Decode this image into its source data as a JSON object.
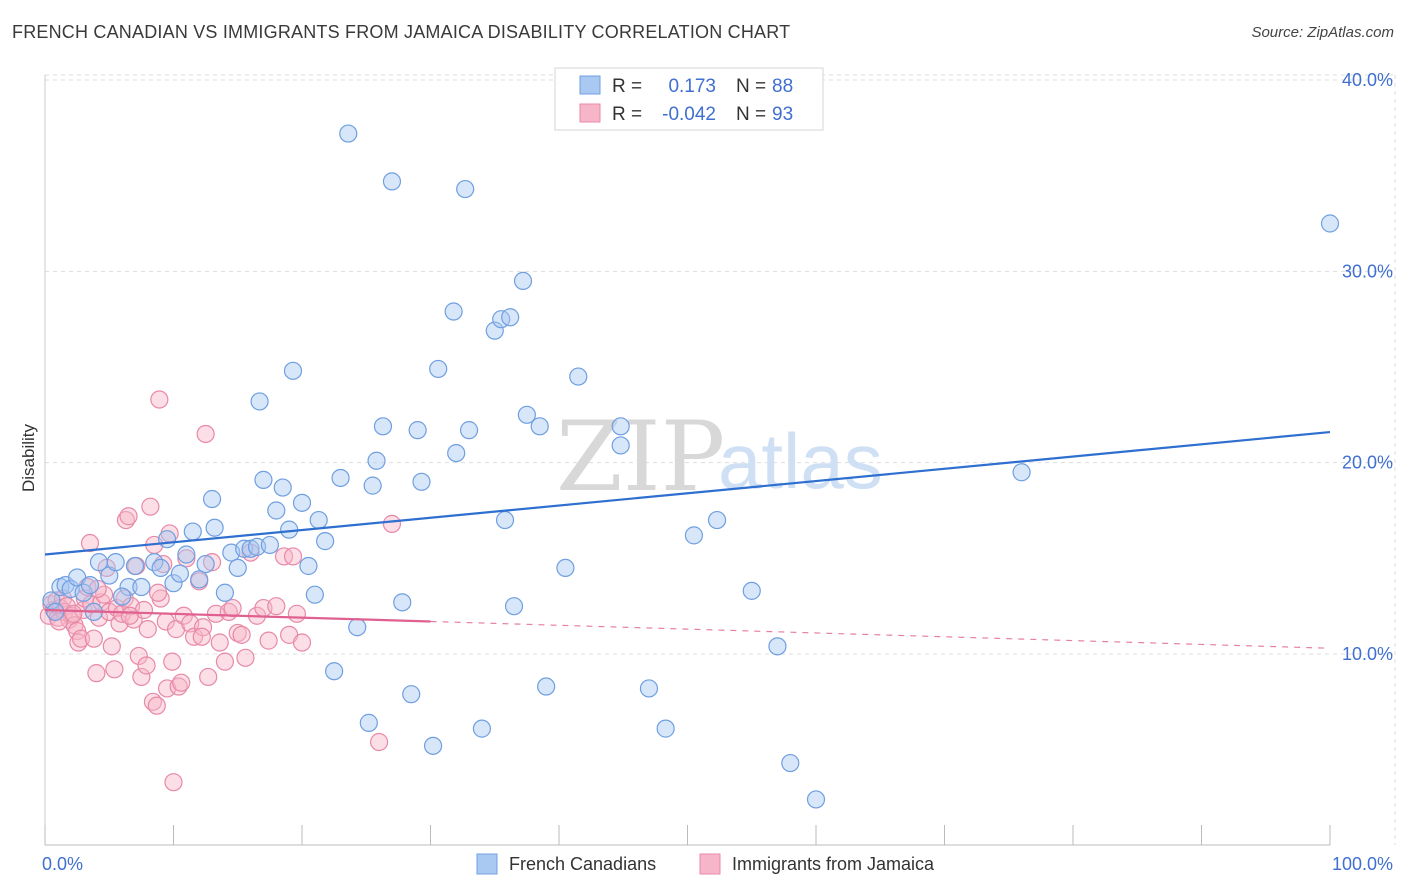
{
  "title": "FRENCH CANADIAN VS IMMIGRANTS FROM JAMAICA DISABILITY CORRELATION CHART",
  "source": "Source: ZipAtlas.com",
  "watermark": {
    "zip": "ZIP",
    "atlas": "atlas"
  },
  "colors": {
    "blue_fill": "#a9c8f2",
    "blue_stroke": "#6f9fe0",
    "blue_line": "#2e6fd0",
    "pink_fill": "#f6b5c8",
    "pink_stroke": "#e889a8",
    "pink_line": "#e0608f",
    "tick_text": "#3f6fd0",
    "grid": "#dddddd"
  },
  "legend": {
    "row1": {
      "r_label": "R =",
      "r_value": "0.173",
      "n_label": "N =",
      "n_value": "88"
    },
    "row2": {
      "r_label": "R =",
      "r_value": "-0.042",
      "n_label": "N =",
      "n_value": "93"
    }
  },
  "bottom_legend": {
    "series1": "French Canadians",
    "series2": "Immigrants from Jamaica"
  },
  "chart_data": {
    "type": "scatter",
    "title": "FRENCH CANADIAN VS IMMIGRANTS FROM JAMAICA DISABILITY CORRELATION CHART",
    "xlabel": "",
    "ylabel": "Disability",
    "xlim": [
      0,
      100
    ],
    "ylim": [
      0,
      41
    ],
    "x_tick_labels": [
      "0.0%",
      "100.0%"
    ],
    "y_ticks": [
      10,
      20,
      30,
      40
    ],
    "y_tick_labels": [
      "10.0%",
      "20.0%",
      "30.0%",
      "40.0%"
    ],
    "series": [
      {
        "name": "French Canadians",
        "R": 0.173,
        "N": 88,
        "trend": {
          "x": [
            0,
            100
          ],
          "y": [
            15.2,
            21.6
          ],
          "dashed_from": null
        },
        "points": [
          [
            0.5,
            12.8
          ],
          [
            0.8,
            12.2
          ],
          [
            1.2,
            13.5
          ],
          [
            1.6,
            13.6
          ],
          [
            2.0,
            13.4
          ],
          [
            2.5,
            14.0
          ],
          [
            3.0,
            13.2
          ],
          [
            3.5,
            13.6
          ],
          [
            4.2,
            14.8
          ],
          [
            5.0,
            14.1
          ],
          [
            5.5,
            14.8
          ],
          [
            6.5,
            13.5
          ],
          [
            7.0,
            14.6
          ],
          [
            7.5,
            13.5
          ],
          [
            8.5,
            14.8
          ],
          [
            9.5,
            16.0
          ],
          [
            10.0,
            13.7
          ],
          [
            10.5,
            14.2
          ],
          [
            11.0,
            15.2
          ],
          [
            11.5,
            16.4
          ],
          [
            12.0,
            13.9
          ],
          [
            12.5,
            14.7
          ],
          [
            13.0,
            18.1
          ],
          [
            13.2,
            16.6
          ],
          [
            14.0,
            13.2
          ],
          [
            14.5,
            15.3
          ],
          [
            15.0,
            14.5
          ],
          [
            15.5,
            15.5
          ],
          [
            16.0,
            15.5
          ],
          [
            16.5,
            15.6
          ],
          [
            16.7,
            23.2
          ],
          [
            17.0,
            19.1
          ],
          [
            17.5,
            15.7
          ],
          [
            18.0,
            17.5
          ],
          [
            18.5,
            18.7
          ],
          [
            19.0,
            16.5
          ],
          [
            19.3,
            24.8
          ],
          [
            20.0,
            17.9
          ],
          [
            20.5,
            14.6
          ],
          [
            21.0,
            13.1
          ],
          [
            21.3,
            17.0
          ],
          [
            21.8,
            15.9
          ],
          [
            22.5,
            9.1
          ],
          [
            23.0,
            19.2
          ],
          [
            23.6,
            37.2
          ],
          [
            24.3,
            11.4
          ],
          [
            25.2,
            6.4
          ],
          [
            25.5,
            18.8
          ],
          [
            25.8,
            20.1
          ],
          [
            26.3,
            21.9
          ],
          [
            27.0,
            34.7
          ],
          [
            27.8,
            12.7
          ],
          [
            28.5,
            7.9
          ],
          [
            29.0,
            21.7
          ],
          [
            29.3,
            19.0
          ],
          [
            30.2,
            5.2
          ],
          [
            30.6,
            24.9
          ],
          [
            31.8,
            27.9
          ],
          [
            32.0,
            20.5
          ],
          [
            32.7,
            34.3
          ],
          [
            33.0,
            21.7
          ],
          [
            34.0,
            6.1
          ],
          [
            35.0,
            26.9
          ],
          [
            35.5,
            27.5
          ],
          [
            35.8,
            17.0
          ],
          [
            36.2,
            27.6
          ],
          [
            36.5,
            12.5
          ],
          [
            37.2,
            29.5
          ],
          [
            37.5,
            22.5
          ],
          [
            38.5,
            21.9
          ],
          [
            39.0,
            8.3
          ],
          [
            40.5,
            14.5
          ],
          [
            41.5,
            24.5
          ],
          [
            44.8,
            21.9
          ],
          [
            44.8,
            20.9
          ],
          [
            47.0,
            8.2
          ],
          [
            48.3,
            6.1
          ],
          [
            50.5,
            16.2
          ],
          [
            52.3,
            17.0
          ],
          [
            55.0,
            13.3
          ],
          [
            57.0,
            10.4
          ],
          [
            58.0,
            4.3
          ],
          [
            60.0,
            2.4
          ],
          [
            76.0,
            19.5
          ],
          [
            100.0,
            32.5
          ],
          [
            3.8,
            12.2
          ],
          [
            6.0,
            13.0
          ],
          [
            9.0,
            14.5
          ]
        ]
      },
      {
        "name": "Immigrants from Jamaica",
        "R": -0.042,
        "N": 93,
        "trend": {
          "x": [
            0,
            100
          ],
          "y": [
            12.3,
            10.3
          ],
          "dashed_from": 30
        },
        "points": [
          [
            0.3,
            12.0
          ],
          [
            0.5,
            12.6
          ],
          [
            0.7,
            12.3
          ],
          [
            0.9,
            12.8
          ],
          [
            1.0,
            11.9
          ],
          [
            1.2,
            12.4
          ],
          [
            1.4,
            12.9
          ],
          [
            1.5,
            12.2
          ],
          [
            1.7,
            12.5
          ],
          [
            1.9,
            11.8
          ],
          [
            2.1,
            12.0
          ],
          [
            2.3,
            11.5
          ],
          [
            2.5,
            11.2
          ],
          [
            2.6,
            10.6
          ],
          [
            2.8,
            10.8
          ],
          [
            3.0,
            12.3
          ],
          [
            3.1,
            12.9
          ],
          [
            3.3,
            13.5
          ],
          [
            3.5,
            15.8
          ],
          [
            3.6,
            12.6
          ],
          [
            3.8,
            10.8
          ],
          [
            4.0,
            9.0
          ],
          [
            4.2,
            11.9
          ],
          [
            4.4,
            12.7
          ],
          [
            4.6,
            13.1
          ],
          [
            4.8,
            14.5
          ],
          [
            5.0,
            12.2
          ],
          [
            5.2,
            10.4
          ],
          [
            5.4,
            9.2
          ],
          [
            5.6,
            12.4
          ],
          [
            5.8,
            11.6
          ],
          [
            6.0,
            12.1
          ],
          [
            6.2,
            12.9
          ],
          [
            6.3,
            17.0
          ],
          [
            6.5,
            17.2
          ],
          [
            6.7,
            12.5
          ],
          [
            6.9,
            11.8
          ],
          [
            7.1,
            14.6
          ],
          [
            7.3,
            9.9
          ],
          [
            7.5,
            8.8
          ],
          [
            7.7,
            12.3
          ],
          [
            7.9,
            9.4
          ],
          [
            8.0,
            11.3
          ],
          [
            8.2,
            17.7
          ],
          [
            8.4,
            7.5
          ],
          [
            8.5,
            15.7
          ],
          [
            8.7,
            7.3
          ],
          [
            8.9,
            23.3
          ],
          [
            9.0,
            12.9
          ],
          [
            9.2,
            14.7
          ],
          [
            9.4,
            11.7
          ],
          [
            9.5,
            8.2
          ],
          [
            9.7,
            16.3
          ],
          [
            9.9,
            9.6
          ],
          [
            10.0,
            3.3
          ],
          [
            10.2,
            11.3
          ],
          [
            10.4,
            8.3
          ],
          [
            10.6,
            8.5
          ],
          [
            10.8,
            12.0
          ],
          [
            11.0,
            15.0
          ],
          [
            11.3,
            11.6
          ],
          [
            11.6,
            10.9
          ],
          [
            12.0,
            13.8
          ],
          [
            12.3,
            11.4
          ],
          [
            12.5,
            21.5
          ],
          [
            12.7,
            8.8
          ],
          [
            13.0,
            14.8
          ],
          [
            13.3,
            12.1
          ],
          [
            13.6,
            10.6
          ],
          [
            14.0,
            9.6
          ],
          [
            14.3,
            12.2
          ],
          [
            14.6,
            12.4
          ],
          [
            15.0,
            11.1
          ],
          [
            15.3,
            11.0
          ],
          [
            15.6,
            9.8
          ],
          [
            16.0,
            15.3
          ],
          [
            16.5,
            12.0
          ],
          [
            17.0,
            12.4
          ],
          [
            17.4,
            10.7
          ],
          [
            18.0,
            12.5
          ],
          [
            18.6,
            15.1
          ],
          [
            19.0,
            11.0
          ],
          [
            19.3,
            15.1
          ],
          [
            19.6,
            12.1
          ],
          [
            20.0,
            10.6
          ],
          [
            26.0,
            5.4
          ],
          [
            27.0,
            16.8
          ],
          [
            1.1,
            11.7
          ],
          [
            2.2,
            12.1
          ],
          [
            4.1,
            13.4
          ],
          [
            6.6,
            12.0
          ],
          [
            8.8,
            13.2
          ],
          [
            12.2,
            10.9
          ]
        ]
      }
    ]
  }
}
